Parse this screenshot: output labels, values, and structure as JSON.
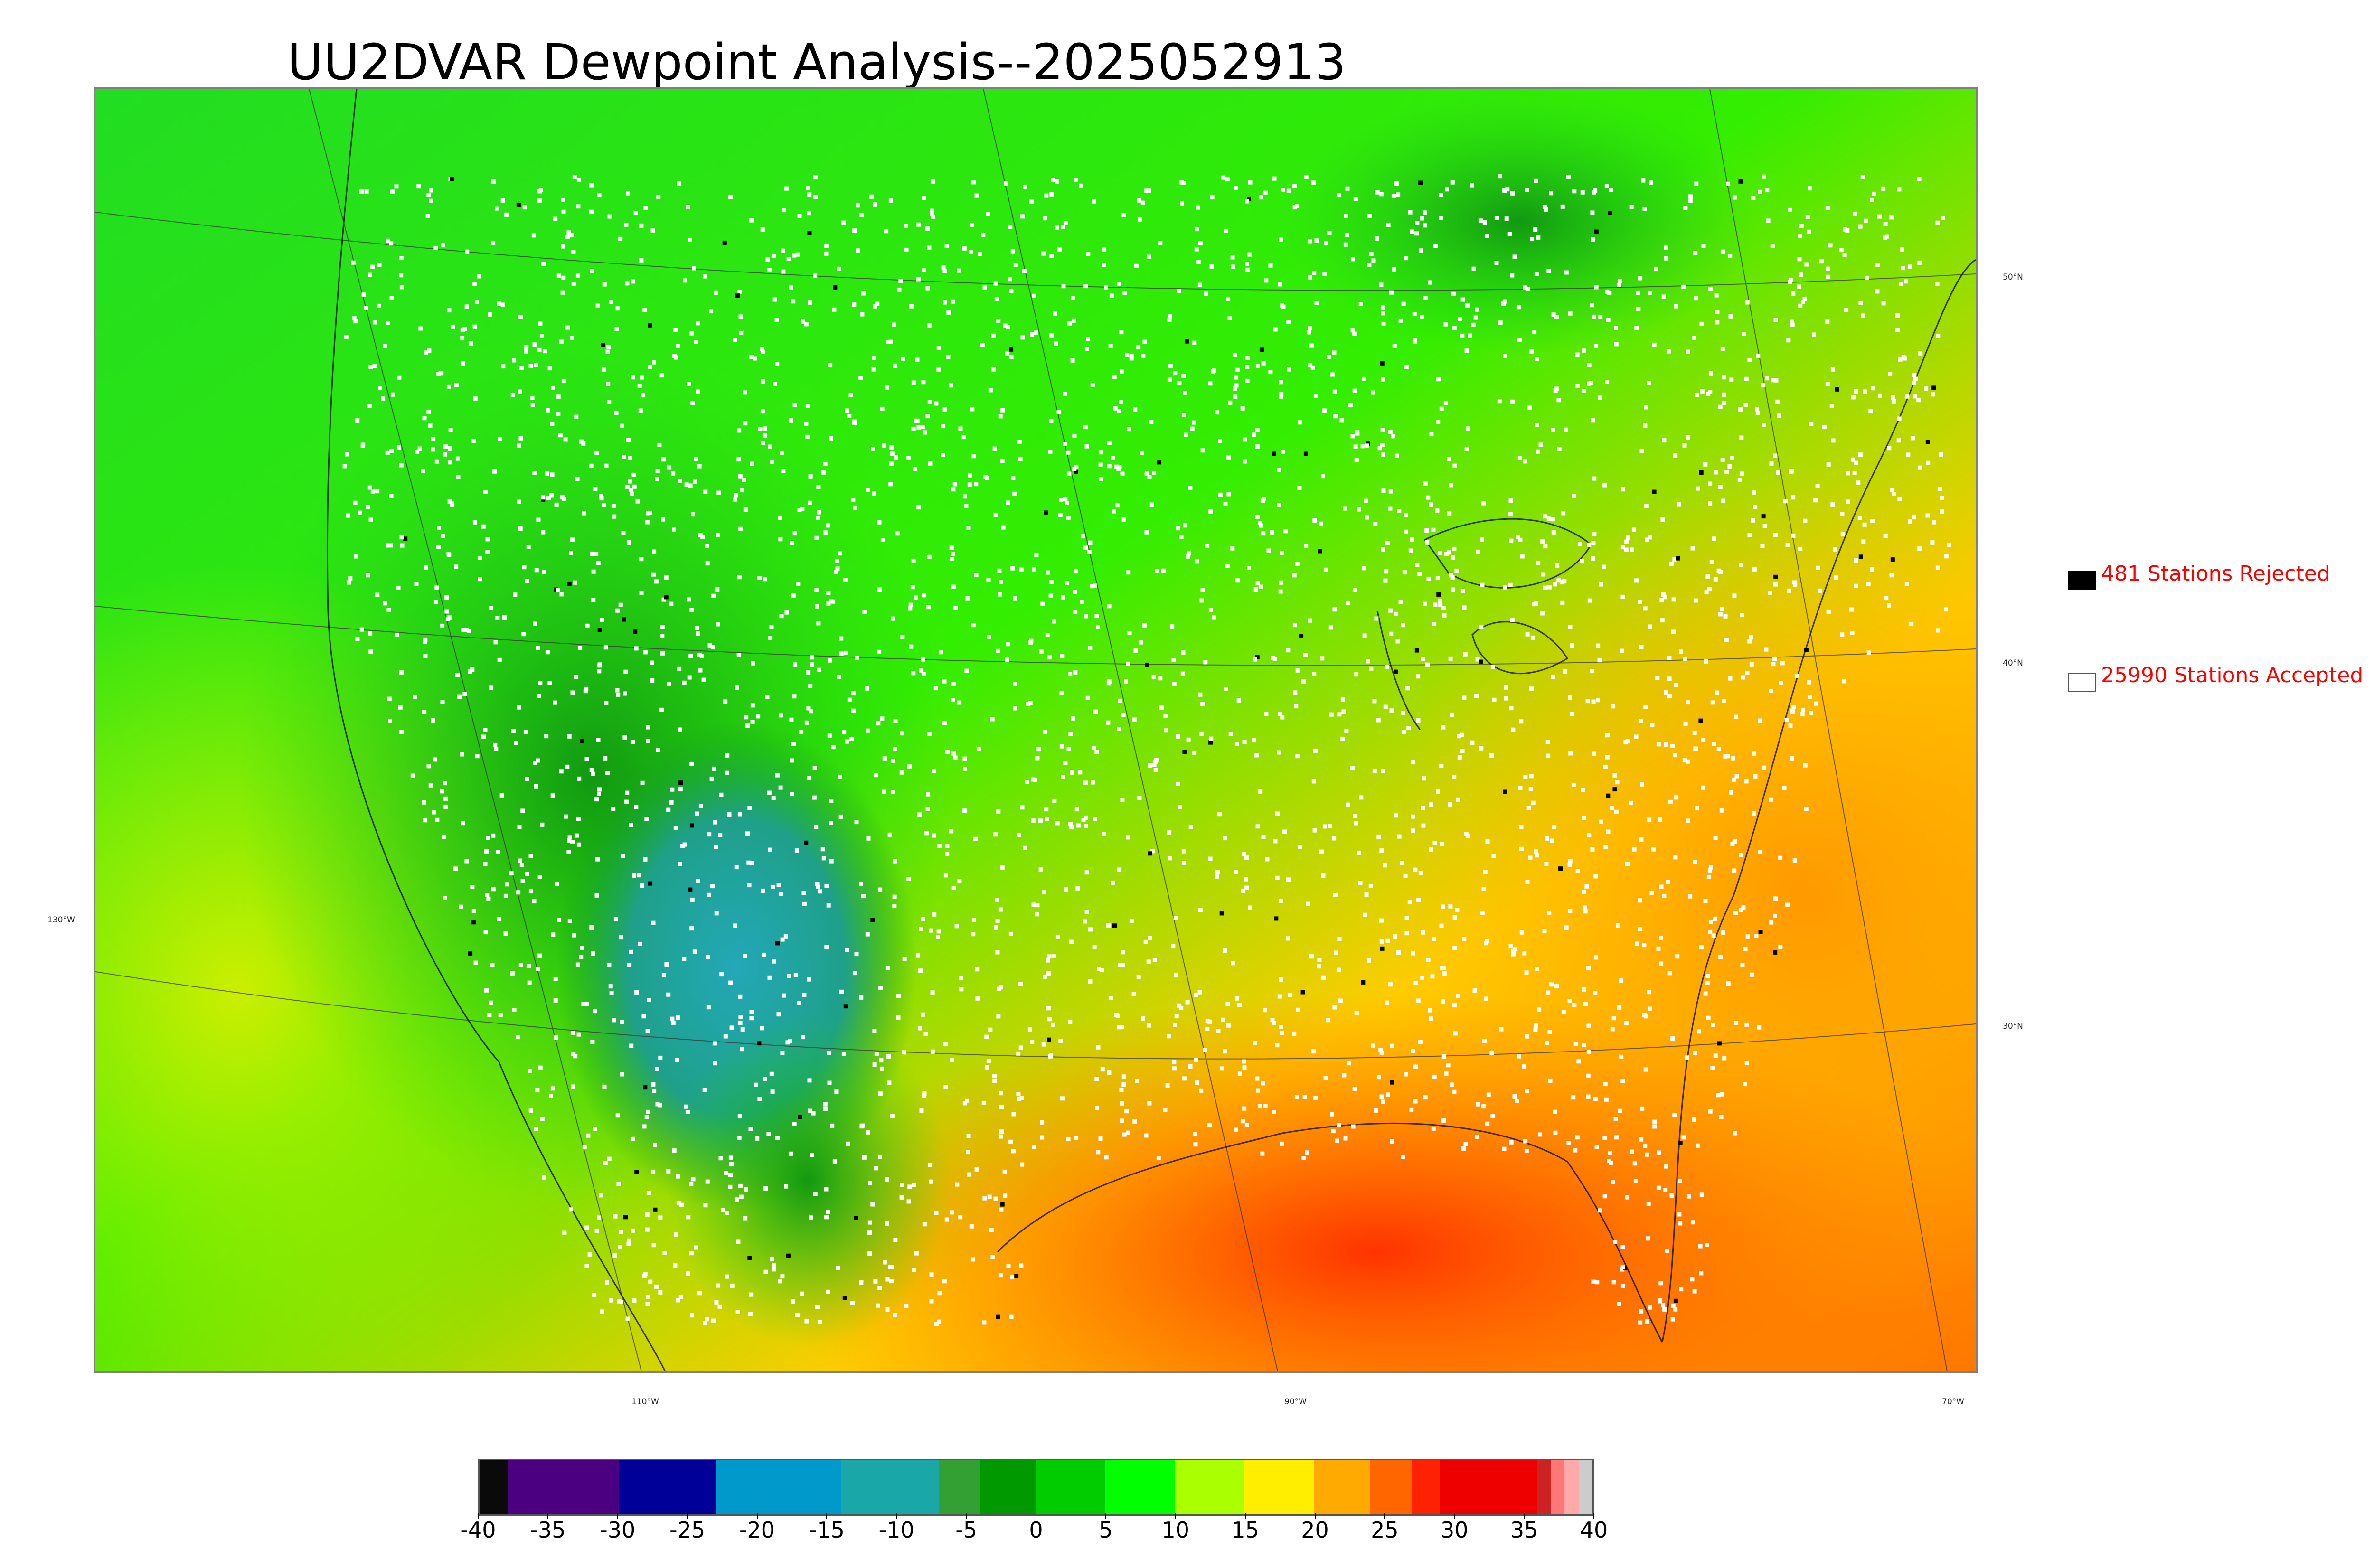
{
  "title": "UU2DVAR Dewpoint Analysis--2025052913",
  "map": {
    "region": "CONUS dewpoint analysis",
    "lat_labels": [
      "50°N",
      "40°N",
      "30°N"
    ],
    "lon_labels": [
      "130°W",
      "110°W",
      "90°W",
      "70°W"
    ]
  },
  "legend": {
    "rejected": {
      "label": "481 Stations Rejected",
      "count": 481,
      "marker_color": "#000000"
    },
    "accepted": {
      "label": "25990 Stations Accepted",
      "count": 25990,
      "marker_color": "#ffffff"
    },
    "text_color": "#ff0000"
  },
  "colorbar": {
    "min": -40,
    "max": 40,
    "tick_labels": [
      "-40",
      "-35",
      "-30",
      "-25",
      "-20",
      "-15",
      "-10",
      "-5",
      "0",
      "5",
      "10",
      "15",
      "20",
      "25",
      "30",
      "35",
      "40"
    ],
    "segments": [
      {
        "from": -40,
        "to": -38,
        "color": "#0a0a0a"
      },
      {
        "from": -38,
        "to": -30,
        "color": "#4b0082"
      },
      {
        "from": -30,
        "to": -23,
        "color": "#000099"
      },
      {
        "from": -23,
        "to": -14,
        "color": "#0099cc"
      },
      {
        "from": -14,
        "to": -7,
        "color": "#1aa7a7"
      },
      {
        "from": -7,
        "to": -4,
        "color": "#33a033"
      },
      {
        "from": -4,
        "to": 0,
        "color": "#009900"
      },
      {
        "from": 0,
        "to": 5,
        "color": "#00cc00"
      },
      {
        "from": 5,
        "to": 10,
        "color": "#00ff00"
      },
      {
        "from": 10,
        "to": 15,
        "color": "#aaff00"
      },
      {
        "from": 15,
        "to": 20,
        "color": "#ffee00"
      },
      {
        "from": 20,
        "to": 24,
        "color": "#ffaa00"
      },
      {
        "from": 24,
        "to": 27,
        "color": "#ff6600"
      },
      {
        "from": 27,
        "to": 29,
        "color": "#ff2200"
      },
      {
        "from": 29,
        "to": 36,
        "color": "#ee0000"
      },
      {
        "from": 36,
        "to": 37,
        "color": "#cc2222"
      },
      {
        "from": 37,
        "to": 38,
        "color": "#ff7777"
      },
      {
        "from": 38,
        "to": 39,
        "color": "#ffaaaa"
      },
      {
        "from": 39,
        "to": 40,
        "color": "#cccccc"
      }
    ]
  }
}
